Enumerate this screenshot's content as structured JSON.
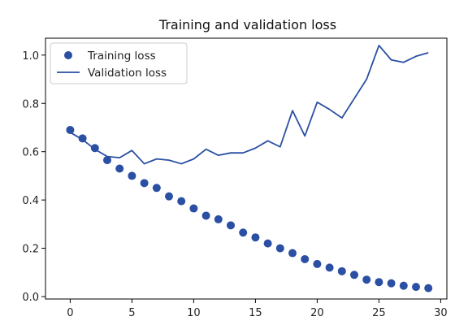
{
  "chart_data": {
    "type": "line",
    "title": "Training and validation loss",
    "xlabel": "",
    "ylabel": "",
    "xlim": [
      -2,
      30.5
    ],
    "ylim": [
      -0.01,
      1.07
    ],
    "x_ticks": [
      0,
      5,
      10,
      15,
      20,
      25,
      30
    ],
    "x_tick_labels": [
      "0",
      "5",
      "10",
      "15",
      "20",
      "25",
      "30"
    ],
    "y_ticks": [
      0.0,
      0.2,
      0.4,
      0.6,
      0.8,
      1.0
    ],
    "y_tick_labels": [
      "0.0",
      "0.2",
      "0.4",
      "0.6",
      "0.8",
      "1.0"
    ],
    "grid": false,
    "legend_position": "top-left",
    "color": "#2a4fa3",
    "x": [
      0,
      1,
      2,
      3,
      4,
      5,
      6,
      7,
      8,
      9,
      10,
      11,
      12,
      13,
      14,
      15,
      16,
      17,
      18,
      19,
      20,
      21,
      22,
      23,
      24,
      25,
      26,
      27,
      28,
      29
    ],
    "series": [
      {
        "name": "Training loss",
        "style": "scatter",
        "values": [
          0.69,
          0.655,
          0.615,
          0.565,
          0.53,
          0.5,
          0.47,
          0.45,
          0.415,
          0.395,
          0.365,
          0.335,
          0.32,
          0.295,
          0.265,
          0.245,
          0.22,
          0.2,
          0.18,
          0.155,
          0.135,
          0.12,
          0.105,
          0.09,
          0.07,
          0.06,
          0.055,
          0.045,
          0.04,
          0.035
        ]
      },
      {
        "name": "Validation loss",
        "style": "line",
        "values": [
          0.68,
          0.65,
          0.61,
          0.58,
          0.575,
          0.605,
          0.55,
          0.57,
          0.565,
          0.55,
          0.57,
          0.61,
          0.585,
          0.595,
          0.595,
          0.615,
          0.645,
          0.62,
          0.77,
          0.665,
          0.805,
          0.775,
          0.74,
          0.82,
          0.9,
          1.04,
          0.98,
          0.97,
          0.995,
          1.01
        ]
      }
    ]
  }
}
